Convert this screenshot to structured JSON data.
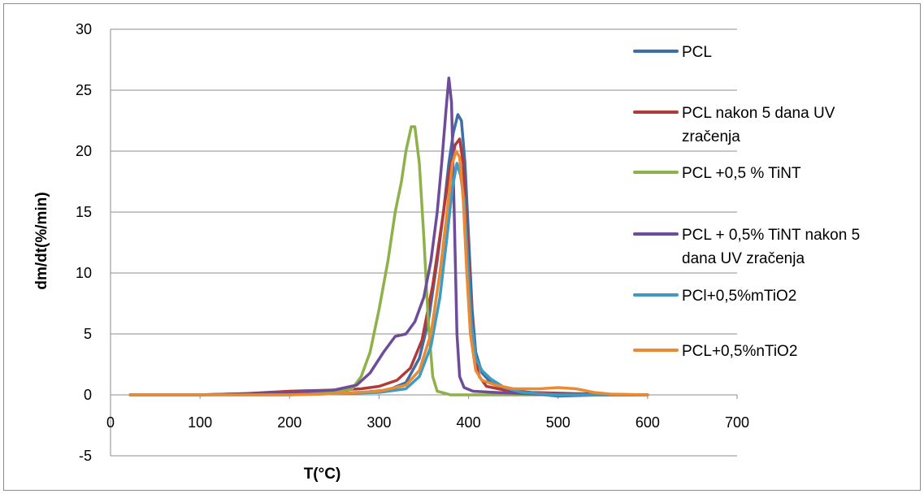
{
  "chart_data": {
    "type": "line",
    "title": "",
    "xlabel": "T(°C)",
    "ylabel": "dm/dt(%/min)",
    "xlim": [
      0,
      700
    ],
    "ylim": [
      -5,
      30
    ],
    "xticks": [
      0,
      100,
      200,
      300,
      400,
      500,
      600,
      700
    ],
    "yticks": [
      -5,
      0,
      5,
      10,
      15,
      20,
      25,
      30
    ],
    "grid": "horizontal",
    "legend_position": "right",
    "series": [
      {
        "name": "PCL",
        "legend_lines": [
          "PCL"
        ],
        "color": "#3d6ea6",
        "points": [
          [
            22,
            0
          ],
          [
            100,
            0
          ],
          [
            200,
            0.1
          ],
          [
            280,
            0.2
          ],
          [
            310,
            0.4
          ],
          [
            330,
            1
          ],
          [
            345,
            3
          ],
          [
            355,
            6
          ],
          [
            365,
            11
          ],
          [
            372,
            15
          ],
          [
            378,
            19
          ],
          [
            383,
            21.5
          ],
          [
            388,
            23
          ],
          [
            392,
            22.5
          ],
          [
            396,
            19
          ],
          [
            400,
            13
          ],
          [
            404,
            7
          ],
          [
            408,
            3.5
          ],
          [
            415,
            1.8
          ],
          [
            425,
            1
          ],
          [
            440,
            0.5
          ],
          [
            470,
            0.1
          ],
          [
            500,
            -0.1
          ],
          [
            550,
            0
          ],
          [
            600,
            0
          ]
        ]
      },
      {
        "name": "PCL nakon 5 dana UV zračenja",
        "legend_lines": [
          "PCL nakon 5 dana UV",
          "zračenja"
        ],
        "color": "#b03a3a",
        "points": [
          [
            22,
            0
          ],
          [
            100,
            0
          ],
          [
            150,
            0.1
          ],
          [
            200,
            0.3
          ],
          [
            250,
            0.4
          ],
          [
            280,
            0.5
          ],
          [
            300,
            0.7
          ],
          [
            320,
            1.2
          ],
          [
            335,
            2.2
          ],
          [
            348,
            4.5
          ],
          [
            360,
            9
          ],
          [
            370,
            14
          ],
          [
            378,
            18
          ],
          [
            385,
            20.5
          ],
          [
            390,
            21
          ],
          [
            394,
            19
          ],
          [
            398,
            14
          ],
          [
            402,
            8
          ],
          [
            406,
            3.5
          ],
          [
            412,
            1.5
          ],
          [
            420,
            0.7
          ],
          [
            440,
            0.4
          ],
          [
            470,
            0.2
          ],
          [
            520,
            0.1
          ],
          [
            600,
            0
          ]
        ]
      },
      {
        "name": "PCL +0,5 % TiNT",
        "legend_lines": [
          "PCL +0,5 % TiNT"
        ],
        "color": "#8fb14a",
        "points": [
          [
            22,
            0
          ],
          [
            100,
            0
          ],
          [
            200,
            0.1
          ],
          [
            250,
            0.2
          ],
          [
            270,
            0.5
          ],
          [
            280,
            1.5
          ],
          [
            290,
            3.5
          ],
          [
            300,
            7
          ],
          [
            310,
            11
          ],
          [
            318,
            15
          ],
          [
            325,
            17.5
          ],
          [
            330,
            20
          ],
          [
            336,
            22
          ],
          [
            340,
            22
          ],
          [
            345,
            19
          ],
          [
            350,
            13
          ],
          [
            355,
            6
          ],
          [
            360,
            1.5
          ],
          [
            365,
            0.3
          ],
          [
            380,
            0
          ],
          [
            450,
            0
          ],
          [
            600,
            0
          ]
        ]
      },
      {
        "name": "PCL + 0,5% TiNT nakon 5 dana UV zračenja",
        "legend_lines": [
          "PCL + 0,5% TiNT nakon 5",
          "dana UV zračenja"
        ],
        "color": "#6f4c9b",
        "points": [
          [
            22,
            0
          ],
          [
            100,
            0
          ],
          [
            200,
            0.2
          ],
          [
            250,
            0.4
          ],
          [
            275,
            0.8
          ],
          [
            290,
            1.8
          ],
          [
            305,
            3.5
          ],
          [
            318,
            4.8
          ],
          [
            330,
            5
          ],
          [
            340,
            6
          ],
          [
            350,
            8
          ],
          [
            358,
            11
          ],
          [
            365,
            15
          ],
          [
            370,
            19
          ],
          [
            375,
            23.5
          ],
          [
            378,
            26
          ],
          [
            381,
            24
          ],
          [
            384,
            15
          ],
          [
            387,
            5
          ],
          [
            390,
            1.5
          ],
          [
            395,
            0.6
          ],
          [
            405,
            0.3
          ],
          [
            430,
            0.2
          ],
          [
            500,
            0
          ],
          [
            600,
            0
          ]
        ]
      },
      {
        "name": "PCl+0,5%mTiO2",
        "legend_lines": [
          "PCl+0,5%mTiO2"
        ],
        "color": "#3e9cc1",
        "points": [
          [
            22,
            0
          ],
          [
            100,
            0
          ],
          [
            200,
            0
          ],
          [
            250,
            0.1
          ],
          [
            300,
            0.2
          ],
          [
            330,
            0.5
          ],
          [
            345,
            1.5
          ],
          [
            358,
            4
          ],
          [
            368,
            8
          ],
          [
            376,
            13
          ],
          [
            382,
            17
          ],
          [
            387,
            19
          ],
          [
            391,
            18
          ],
          [
            395,
            16
          ],
          [
            399,
            11
          ],
          [
            403,
            6
          ],
          [
            408,
            3
          ],
          [
            415,
            2
          ],
          [
            425,
            1.3
          ],
          [
            440,
            0.6
          ],
          [
            460,
            0.2
          ],
          [
            500,
            0
          ],
          [
            600,
            0
          ]
        ]
      },
      {
        "name": "PCL+0,5%nTiO2",
        "legend_lines": [
          "PCL+0,5%nTiO2"
        ],
        "color": "#ec8a34",
        "points": [
          [
            22,
            0
          ],
          [
            100,
            0
          ],
          [
            200,
            0
          ],
          [
            250,
            0.1
          ],
          [
            300,
            0.3
          ],
          [
            330,
            0.8
          ],
          [
            345,
            2
          ],
          [
            358,
            5
          ],
          [
            368,
            10
          ],
          [
            376,
            15
          ],
          [
            382,
            19
          ],
          [
            386,
            20
          ],
          [
            390,
            19.5
          ],
          [
            394,
            16
          ],
          [
            398,
            10
          ],
          [
            402,
            5
          ],
          [
            408,
            2
          ],
          [
            415,
            1.2
          ],
          [
            430,
            0.8
          ],
          [
            450,
            0.5
          ],
          [
            480,
            0.5
          ],
          [
            500,
            0.6
          ],
          [
            520,
            0.5
          ],
          [
            540,
            0.2
          ],
          [
            560,
            0.05
          ],
          [
            600,
            0
          ]
        ]
      }
    ]
  }
}
